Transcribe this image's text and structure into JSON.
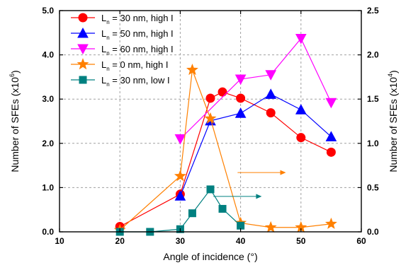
{
  "chart_data": {
    "type": "line",
    "xlabel": "Angle of incidence (°)",
    "ylabel_left": {
      "base": "Number of SFEs (x10",
      "exp": "6",
      "close": ")"
    },
    "ylabel_right": {
      "base": "Number of SFEs (x10",
      "exp": "4",
      "close": ")"
    },
    "xlim": [
      10,
      60
    ],
    "ylim_left": [
      0,
      5
    ],
    "ylim_right": [
      0,
      2.5
    ],
    "x_ticks": [
      "10",
      "20",
      "30",
      "40",
      "50",
      "60"
    ],
    "y_ticks_left": [
      "0.0",
      "1.0",
      "2.0",
      "3.0",
      "4.0",
      "5.0"
    ],
    "y_ticks_right": [
      "0.0",
      "0.5",
      "1.0",
      "1.5",
      "2.0",
      "2.5"
    ],
    "grid": true,
    "legend_position": "top-left",
    "series": [
      {
        "name": "L_n = 30 nm, high I",
        "legend": {
          "L": "L",
          "sub": "n",
          "rest": " = 30 nm, high I"
        },
        "axis": "left",
        "color": "#ff0000",
        "marker": "circle",
        "x": [
          20,
          30,
          35,
          37,
          40,
          45,
          50,
          55
        ],
        "y": [
          0.12,
          0.85,
          3.02,
          3.16,
          3.02,
          2.69,
          2.13,
          1.8
        ]
      },
      {
        "name": "L_n = 50 nm, high I",
        "legend": {
          "L": "L",
          "sub": "n",
          "rest": " = 50 nm, high I"
        },
        "axis": "left",
        "color": "#0000ff",
        "marker": "triangle-up",
        "x": [
          30,
          35,
          40,
          45,
          50,
          55
        ],
        "y": [
          0.81,
          2.51,
          2.68,
          3.11,
          2.76,
          2.15
        ]
      },
      {
        "name": "L_n = 60 nm, high I",
        "legend": {
          "L": "L",
          "sub": "n",
          "rest": " = 60 nm, high I"
        },
        "axis": "left",
        "color": "#ff00ff",
        "marker": "triangle-down",
        "x": [
          30,
          40,
          45,
          50,
          55
        ],
        "y": [
          2.1,
          3.45,
          3.55,
          4.37,
          2.92
        ]
      },
      {
        "name": "L_n = 0 nm, high I",
        "legend": {
          "L": "L",
          "sub": "n",
          "rest": " =   0 nm, high I"
        },
        "axis": "right",
        "color": "#ff8000",
        "marker": "star",
        "x": [
          20,
          30,
          32,
          35,
          40,
          45,
          50,
          55
        ],
        "y": [
          0.02,
          0.63,
          1.83,
          1.28,
          0.1,
          0.05,
          0.05,
          0.09
        ]
      },
      {
        "name": "L_n = 30 nm, low I",
        "legend": {
          "L": "L",
          "sub": "n",
          "rest": " = 30 nm, low I"
        },
        "axis": "right",
        "color": "#008080",
        "marker": "square",
        "x": [
          20,
          25,
          30,
          32,
          35,
          37,
          40
        ],
        "y": [
          0.0,
          0.0,
          0.03,
          0.21,
          0.48,
          0.26,
          0.07
        ]
      }
    ],
    "annotations": [
      {
        "type": "arrow",
        "color": "#ff8000",
        "x_from": 39.5,
        "x_to": 47.5,
        "y_right": 0.67
      },
      {
        "type": "arrow",
        "color": "#008080",
        "x_from": 35.5,
        "x_to": 43.5,
        "y_right": 0.4
      }
    ]
  }
}
